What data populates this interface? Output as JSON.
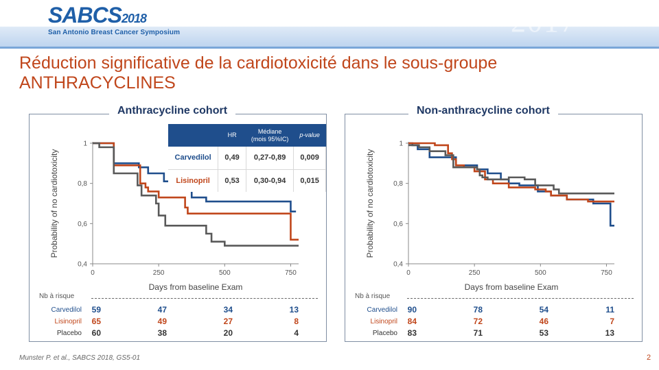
{
  "header": {
    "brand": "SABCS",
    "year": "2018",
    "subtitle": "San Antonio Breast Cancer Symposium",
    "decor_text": "2017"
  },
  "slide": {
    "title_line1": "Réduction significative de la cardiotoxicité dans le sous-groupe",
    "title_line2": "ANTHRACYCLINES",
    "reference": "Munster P. et al., SABCS 2018, GS5-01",
    "page_number": "2"
  },
  "colors": {
    "carvedilol": "#1f4e8c",
    "lisinopril": "#c0461b",
    "placebo": "#595959",
    "title": "#c0461b",
    "panel_title": "#1f3864"
  },
  "hr_table": {
    "headers": [
      "HR",
      "Médiane",
      "(mois 95%IC)",
      "p-value"
    ],
    "rows": [
      {
        "label": "Carvedilol",
        "hr": "0,49",
        "ci": "0,27-0,89",
        "p": "0,009"
      },
      {
        "label": "Lisinopril",
        "hr": "0,53",
        "ci": "0,30-0,94",
        "p": "0,015"
      }
    ]
  },
  "risk_table_header": "Nb à risque",
  "chart_data": [
    {
      "type": "line",
      "title": "Anthracycline cohort",
      "xlabel": "Days from baseline Exam",
      "ylabel": "Probability of no cardiotoxicity",
      "xlim": [
        0,
        780
      ],
      "ylim": [
        0.4,
        1.0
      ],
      "xticks": [
        "0",
        "250",
        "500",
        "750"
      ],
      "yticks": [
        "0,4",
        "0,6",
        "0,8",
        "1"
      ],
      "grid": false,
      "series": [
        {
          "name": "Carvedilol",
          "color": "#1f4e8c",
          "steps": [
            [
              0,
              1.0
            ],
            [
              70,
              1.0
            ],
            [
              80,
              0.9
            ],
            [
              160,
              0.9
            ],
            [
              175,
              0.88
            ],
            [
              200,
              0.88
            ],
            [
              210,
              0.85
            ],
            [
              265,
              0.85
            ],
            [
              270,
              0.81
            ],
            [
              345,
              0.81
            ],
            [
              360,
              0.77
            ],
            [
              370,
              0.77
            ],
            [
              375,
              0.73
            ],
            [
              420,
              0.73
            ],
            [
              430,
              0.71
            ],
            [
              735,
              0.71
            ],
            [
              750,
              0.66
            ],
            [
              770,
              0.66
            ]
          ]
        },
        {
          "name": "Lisinopril",
          "color": "#c0461b",
          "steps": [
            [
              0,
              1.0
            ],
            [
              70,
              1.0
            ],
            [
              80,
              0.89
            ],
            [
              170,
              0.89
            ],
            [
              180,
              0.8
            ],
            [
              200,
              0.78
            ],
            [
              210,
              0.76
            ],
            [
              230,
              0.76
            ],
            [
              250,
              0.73
            ],
            [
              330,
              0.73
            ],
            [
              350,
              0.68
            ],
            [
              360,
              0.65
            ],
            [
              740,
              0.65
            ],
            [
              750,
              0.52
            ],
            [
              780,
              0.52
            ]
          ]
        },
        {
          "name": "Placebo",
          "color": "#595959",
          "steps": [
            [
              0,
              1.0
            ],
            [
              25,
              0.98
            ],
            [
              70,
              0.98
            ],
            [
              80,
              0.85
            ],
            [
              160,
              0.85
            ],
            [
              170,
              0.79
            ],
            [
              185,
              0.74
            ],
            [
              230,
              0.74
            ],
            [
              240,
              0.7
            ],
            [
              250,
              0.64
            ],
            [
              265,
              0.64
            ],
            [
              275,
              0.59
            ],
            [
              420,
              0.59
            ],
            [
              430,
              0.55
            ],
            [
              450,
              0.51
            ],
            [
              495,
              0.51
            ],
            [
              500,
              0.49
            ],
            [
              780,
              0.49
            ]
          ]
        }
      ],
      "risk_table": {
        "Carvedilol": [
          59,
          47,
          34,
          13
        ],
        "Lisinopril": [
          65,
          49,
          27,
          8
        ],
        "Placebo": [
          60,
          38,
          20,
          4
        ]
      }
    },
    {
      "type": "line",
      "title": "Non-anthracycline cohort",
      "xlabel": "Days from baseline Exam",
      "ylabel": "Probability of no cardiotoxicity",
      "xlim": [
        0,
        780
      ],
      "ylim": [
        0.4,
        1.0
      ],
      "xticks": [
        "0",
        "250",
        "500",
        "750"
      ],
      "yticks": [
        "0,4",
        "0,6",
        "0,8",
        "1"
      ],
      "grid": false,
      "series": [
        {
          "name": "Carvedilol",
          "color": "#1f4e8c",
          "steps": [
            [
              0,
              1.0
            ],
            [
              15,
              0.99
            ],
            [
              35,
              0.97
            ],
            [
              80,
              0.93
            ],
            [
              160,
              0.93
            ],
            [
              180,
              0.89
            ],
            [
              260,
              0.87
            ],
            [
              300,
              0.85
            ],
            [
              350,
              0.82
            ],
            [
              380,
              0.8
            ],
            [
              420,
              0.79
            ],
            [
              470,
              0.79
            ],
            [
              490,
              0.76
            ],
            [
              540,
              0.74
            ],
            [
              600,
              0.72
            ],
            [
              700,
              0.7
            ],
            [
              760,
              0.7
            ],
            [
              765,
              0.59
            ],
            [
              780,
              0.59
            ]
          ]
        },
        {
          "name": "Lisinopril",
          "color": "#c0461b",
          "steps": [
            [
              0,
              1.0
            ],
            [
              100,
              0.99
            ],
            [
              150,
              0.95
            ],
            [
              165,
              0.92
            ],
            [
              180,
              0.89
            ],
            [
              210,
              0.88
            ],
            [
              250,
              0.86
            ],
            [
              290,
              0.82
            ],
            [
              320,
              0.8
            ],
            [
              380,
              0.78
            ],
            [
              460,
              0.78
            ],
            [
              480,
              0.77
            ],
            [
              520,
              0.76
            ],
            [
              540,
              0.74
            ],
            [
              600,
              0.72
            ],
            [
              680,
              0.71
            ],
            [
              780,
              0.71
            ]
          ]
        },
        {
          "name": "Placebo",
          "color": "#595959",
          "steps": [
            [
              0,
              0.99
            ],
            [
              40,
              0.98
            ],
            [
              80,
              0.96
            ],
            [
              140,
              0.94
            ],
            [
              170,
              0.88
            ],
            [
              260,
              0.87
            ],
            [
              270,
              0.84
            ],
            [
              280,
              0.83
            ],
            [
              300,
              0.82
            ],
            [
              380,
              0.83
            ],
            [
              440,
              0.82
            ],
            [
              480,
              0.79
            ],
            [
              520,
              0.79
            ],
            [
              550,
              0.77
            ],
            [
              570,
              0.75
            ],
            [
              780,
              0.75
            ]
          ]
        }
      ],
      "risk_table": {
        "Carvedilol": [
          90,
          78,
          54,
          11
        ],
        "Lisinopril": [
          84,
          72,
          46,
          7
        ],
        "Placebo": [
          83,
          71,
          53,
          13
        ]
      }
    }
  ]
}
